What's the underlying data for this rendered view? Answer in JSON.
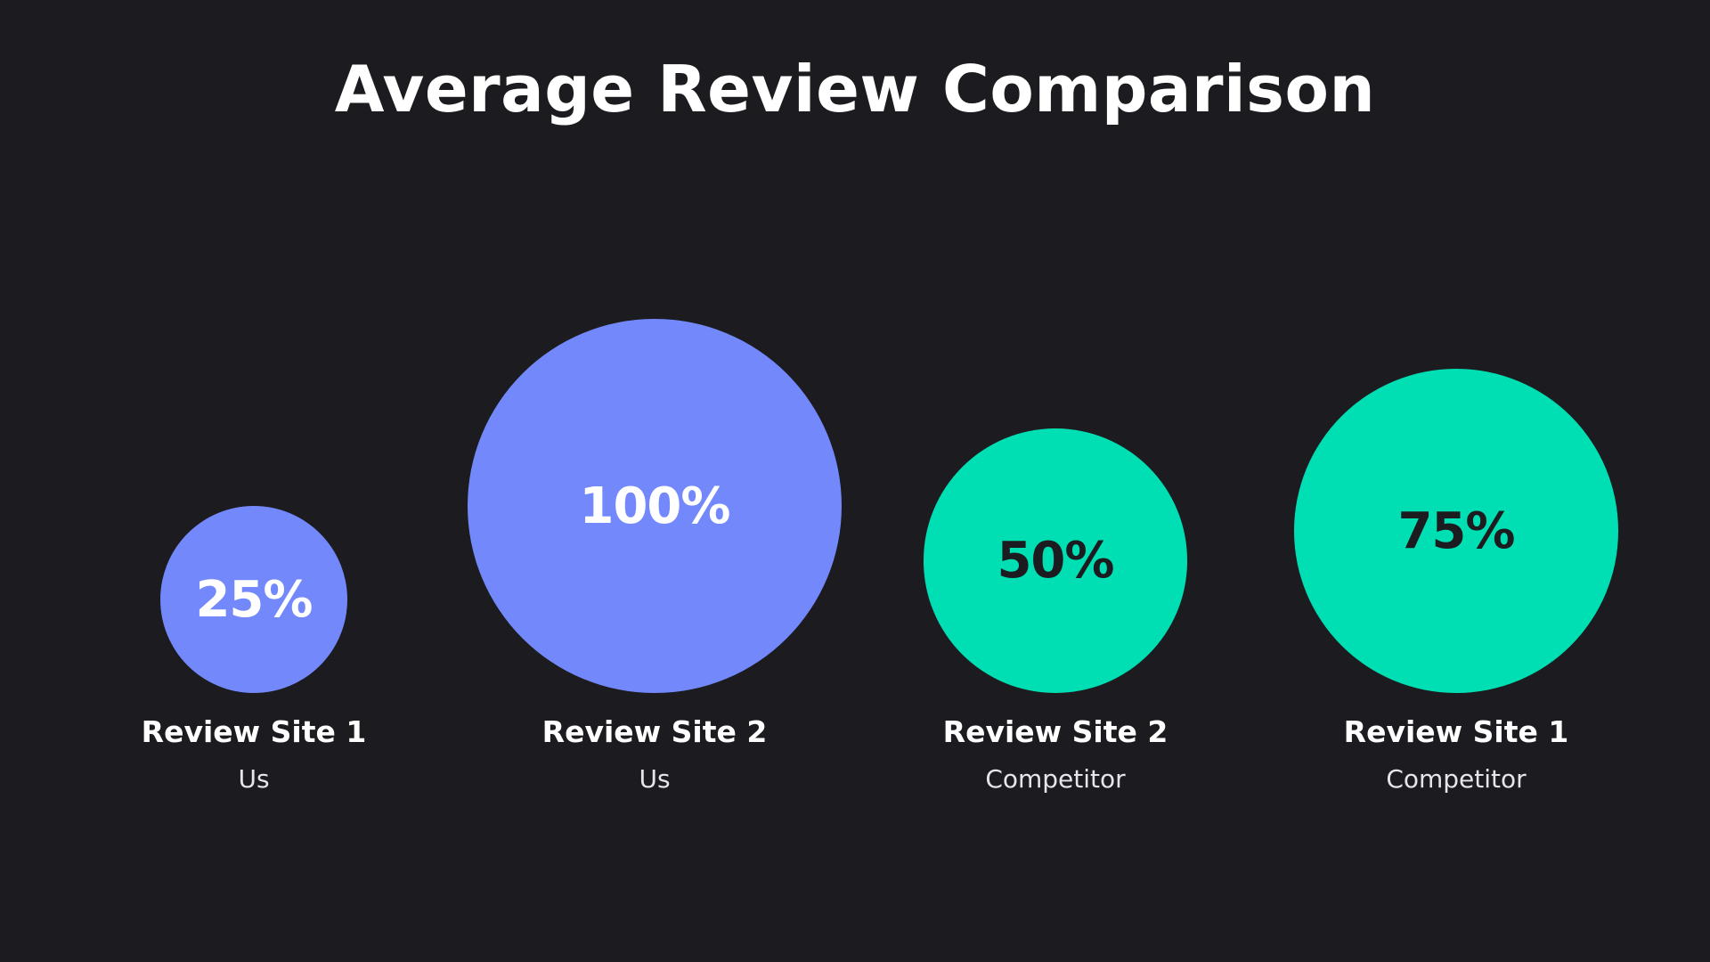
{
  "chart_data": {
    "type": "bubble",
    "title": "Average Review Comparison",
    "max_value": 100,
    "points": [
      {
        "label": "Review Site 1",
        "group": "Us",
        "value": 25,
        "value_label": "25%",
        "color": "#7389fb",
        "text_color": "#ffffff"
      },
      {
        "label": "Review Site 2",
        "group": "Us",
        "value": 100,
        "value_label": "100%",
        "color": "#7389fb",
        "text_color": "#ffffff"
      },
      {
        "label": "Review Site 2",
        "group": "Competitor",
        "value": 50,
        "value_label": "50%",
        "color": "#00dfb3",
        "text_color": "#1c1b1f"
      },
      {
        "label": "Review Site 1",
        "group": "Competitor",
        "value": 75,
        "value_label": "75%",
        "color": "#00dfb3",
        "text_color": "#1c1b1f"
      }
    ]
  }
}
